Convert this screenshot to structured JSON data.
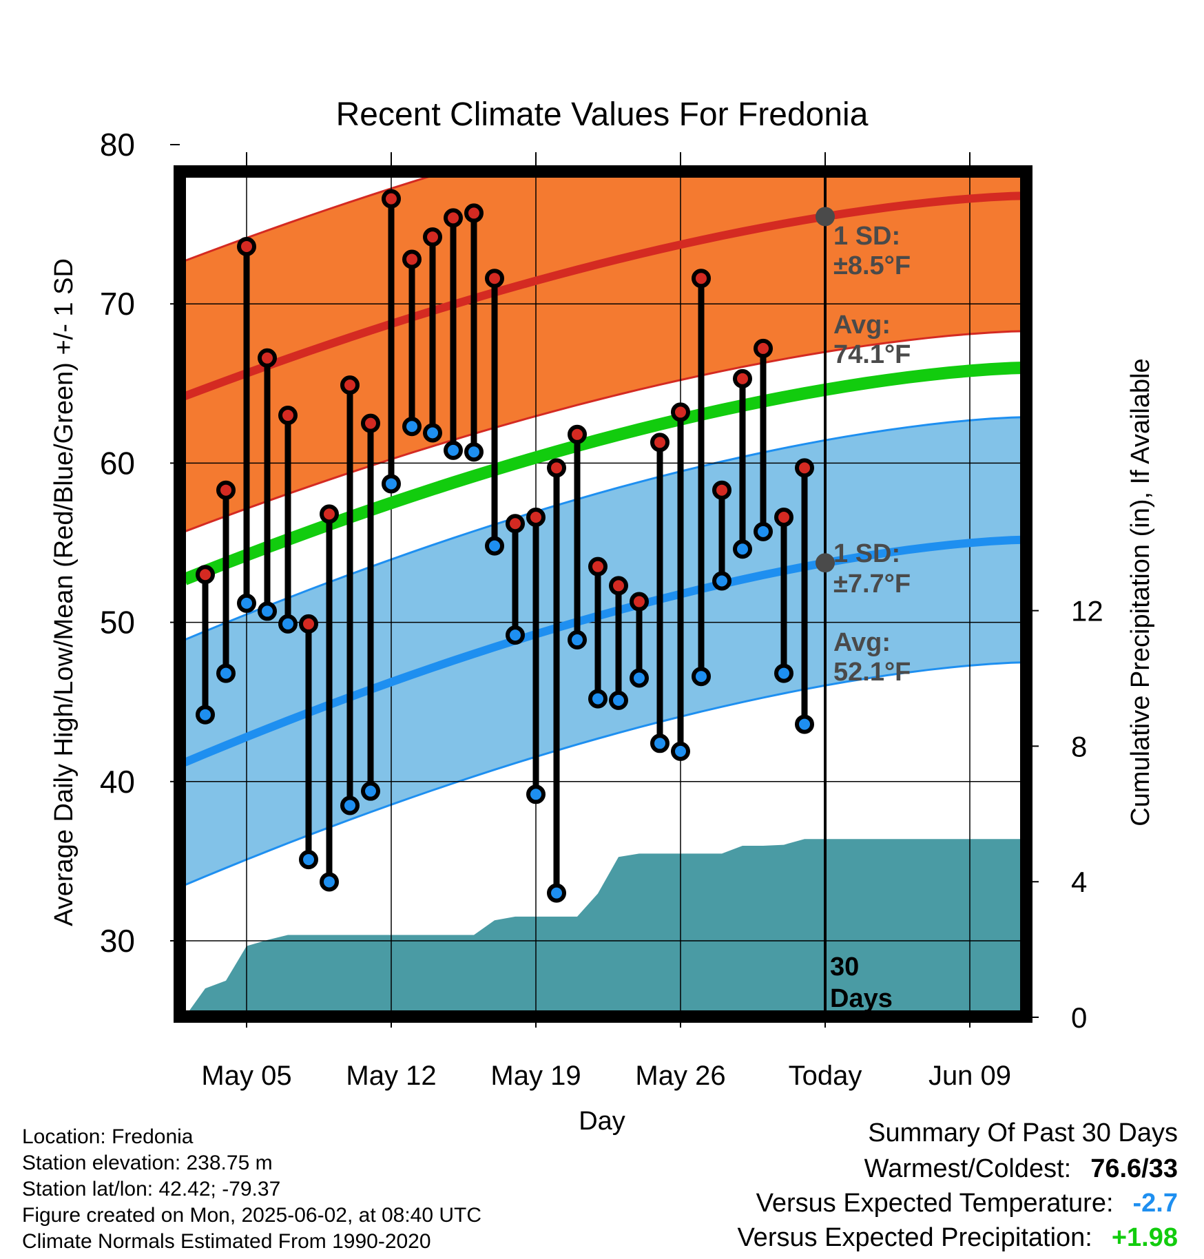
{
  "colors": {
    "high_band": "#f47a30",
    "high_line": "#d42a22",
    "low_band": "#82c2e8",
    "low_line": "#1e8ff0",
    "mean_line": "#12cc0e",
    "precip": "#4a9ba4",
    "high_marker": "#d42a22",
    "low_marker": "#1e8ff0",
    "today_marker": "#4a4a4a",
    "annotation": "#4a4a4a",
    "warm_value": "#000000",
    "temp_departure": "#1e8ff0",
    "precip_departure": "#12cc0e"
  },
  "chart_data": {
    "type": "line",
    "title": "Recent Climate Values For Fredonia",
    "xlabel": "Day",
    "ylabel": "Average Daily High/Low/Mean (Red/Blue/Green) +/- 1 SD",
    "y2label": "Cumulative Precipitation (in), If Available",
    "x_tick_labels": [
      "May 05",
      "May 12",
      "May 19",
      "May 26",
      "Today",
      "Jun 09"
    ],
    "y_ticks": [
      30,
      40,
      50,
      60,
      70,
      80
    ],
    "y2_ticks": [
      0,
      4,
      8,
      12
    ],
    "ylim": [
      25,
      83
    ],
    "y2lim": [
      0,
      24
    ],
    "grid": true,
    "days": [
      "May 02",
      "May 03",
      "May 04",
      "May 05",
      "May 06",
      "May 07",
      "May 08",
      "May 09",
      "May 10",
      "May 11",
      "May 12",
      "May 13",
      "May 14",
      "May 15",
      "May 16",
      "May 17",
      "May 18",
      "May 19",
      "May 20",
      "May 21",
      "May 22",
      "May 23",
      "May 24",
      "May 25",
      "May 26",
      "May 27",
      "May 28",
      "May 29",
      "May 30",
      "May 31",
      "Jun 01",
      "Jun 02",
      "Jun 03",
      "Jun 04",
      "Jun 05",
      "Jun 06",
      "Jun 07",
      "Jun 08",
      "Jun 09",
      "Jun 10",
      "Jun 11",
      "Jun 12"
    ],
    "series": [
      {
        "name": "High",
        "values": [
          53,
          58.3,
          73.6,
          66.6,
          63,
          49.9,
          56.8,
          64.9,
          62.5,
          76.6,
          72.8,
          74.2,
          75.4,
          75.7,
          71.6,
          56.2,
          56.6,
          59.7,
          61.8,
          53.5,
          52.3,
          51.3,
          61.3,
          63.2,
          71.6,
          58.3,
          65.3,
          67.2,
          56.6,
          59.7
        ]
      },
      {
        "name": "Low",
        "values": [
          44.2,
          46.8,
          51.2,
          50.7,
          49.9,
          35.1,
          33.7,
          38.5,
          39.4,
          58.7,
          62.3,
          61.9,
          60.8,
          60.7,
          54.8,
          49.2,
          39.2,
          33,
          48.9,
          45.2,
          45.1,
          46.5,
          42.4,
          41.9,
          46.6,
          52.6,
          54.6,
          55.7,
          46.8,
          43.6
        ]
      },
      {
        "name": "Normal High",
        "start": 64.2,
        "end": 76.8
      },
      {
        "name": "Normal Low",
        "start": 41.2,
        "end": 55.2
      },
      {
        "name": "Normal Mean",
        "start": 52.7,
        "end": 66
      },
      {
        "name": "High SD",
        "value": 8.5
      },
      {
        "name": "Low SD",
        "value": 7.7
      },
      {
        "name": "Cumulative Precipitation",
        "values": [
          0,
          0.85,
          1.08,
          2.1,
          2.28,
          2.43,
          2.43,
          2.43,
          2.43,
          2.43,
          2.43,
          2.43,
          2.43,
          2.43,
          2.43,
          2.86,
          2.97,
          2.97,
          2.97,
          2.97,
          3.65,
          4.73,
          4.83,
          4.83,
          4.83,
          4.83,
          4.83,
          5.06,
          5.06,
          5.09,
          5.26,
          5.26,
          5.26,
          5.26,
          5.26,
          5.26,
          5.26,
          5.26,
          5.26,
          5.26,
          5.26,
          5.26
        ]
      }
    ],
    "today_index": 31
  },
  "annotations": {
    "high_sd_label": "1 SD:",
    "high_sd_value": "±8.5°F",
    "high_avg_label": "Avg:",
    "high_avg_value": "74.1°F",
    "low_sd_label": "1 SD:",
    "low_sd_value": "±7.7°F",
    "low_avg_label": "Avg:",
    "low_avg_value": "52.1°F",
    "window_count": "30",
    "window_unit": "Days"
  },
  "info": {
    "location": "Location: Fredonia",
    "elevation": "Station elevation: 238.75 m",
    "latlon": "Station lat/lon: 42.42; -79.37",
    "created": "Figure created on Mon, 2025-06-02, at 08:40 UTC",
    "normals": "Climate Normals Estimated From 1990-2020"
  },
  "summary": {
    "heading": "Summary Of Past 30 Days",
    "warm_cold_label": "Warmest/Coldest:",
    "warm_cold_value": "76.6/33",
    "temp_label": "Versus Expected Temperature:",
    "temp_value": "-2.7",
    "precip_label": "Versus Expected Precipitation:",
    "precip_value": "+1.98"
  }
}
